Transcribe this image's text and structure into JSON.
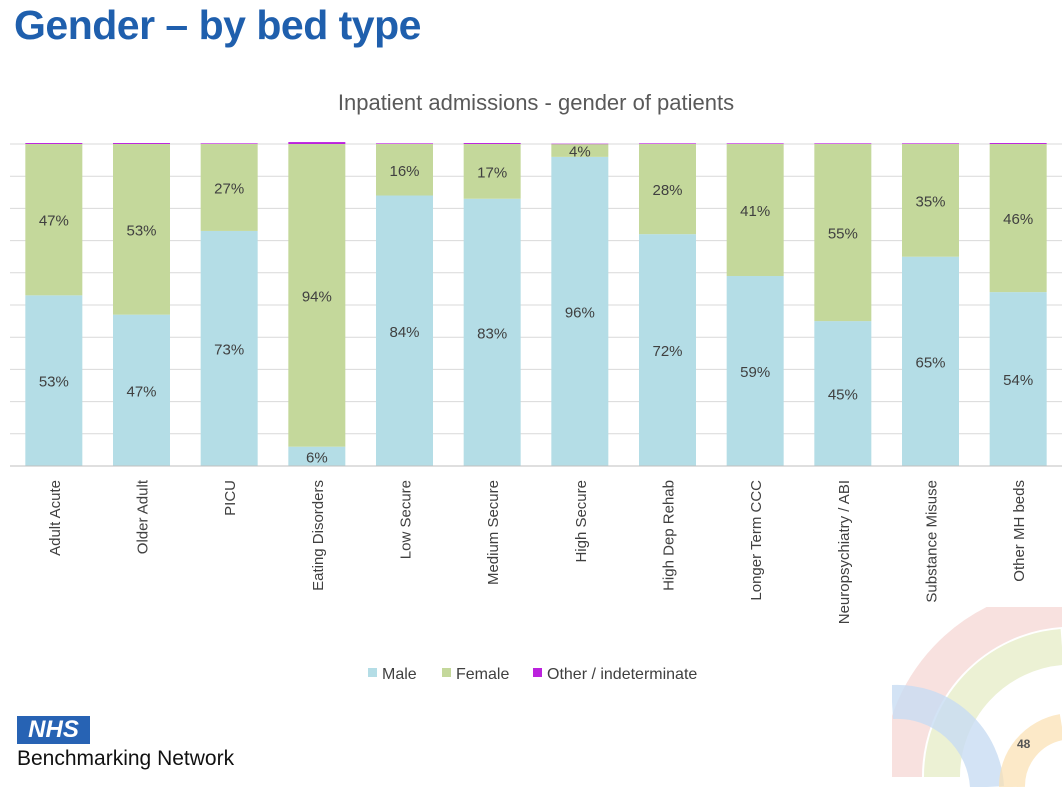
{
  "slide": {
    "title": "Gender – by bed type",
    "logo_text": "NHS",
    "org_name": "Benchmarking Network",
    "page_number": "48"
  },
  "colors": {
    "title": "#1f5fad",
    "male": "#b4dde6",
    "female": "#c4d89b",
    "other": "#bb22dd",
    "gridline": "#d9d9d9",
    "logo_bg": "#2763b4"
  },
  "chart_data": {
    "type": "bar",
    "stacked": true,
    "percent_stacked": true,
    "title": "Inpatient admissions - gender of patients",
    "categories": [
      "Adult Acute",
      "Older Adult",
      "PICU",
      "Eating Disorders",
      "Low Secure",
      "Medium Secure",
      "High Secure",
      "High Dep Rehab",
      "Longer Term CCC",
      "Neuropsychiatry / ABI",
      "Substance Misuse",
      "Other MH beds"
    ],
    "series": [
      {
        "name": "Male",
        "values": [
          53,
          47,
          73,
          6,
          84,
          83,
          96,
          72,
          59,
          45,
          65,
          54
        ],
        "labels": [
          "53%",
          "47%",
          "73%",
          "6%",
          "84%",
          "83%",
          "96%",
          "72%",
          "59%",
          "45%",
          "65%",
          "54%"
        ]
      },
      {
        "name": "Female",
        "values": [
          47,
          53,
          27,
          94,
          16,
          17,
          4,
          28,
          41,
          55,
          35,
          46
        ],
        "labels": [
          "47%",
          "53%",
          "27%",
          "94%",
          "16%",
          "17%",
          "4%",
          "28%",
          "41%",
          "55%",
          "35%",
          "46%"
        ]
      },
      {
        "name": "Other / indeterminate",
        "values": [
          0.3,
          0.3,
          0.2,
          0.6,
          0.2,
          0.3,
          0.1,
          0.2,
          0.2,
          0.2,
          0.2,
          0.3
        ]
      }
    ],
    "ylim": [
      0,
      100
    ],
    "grid": true,
    "legend": "bottom"
  }
}
